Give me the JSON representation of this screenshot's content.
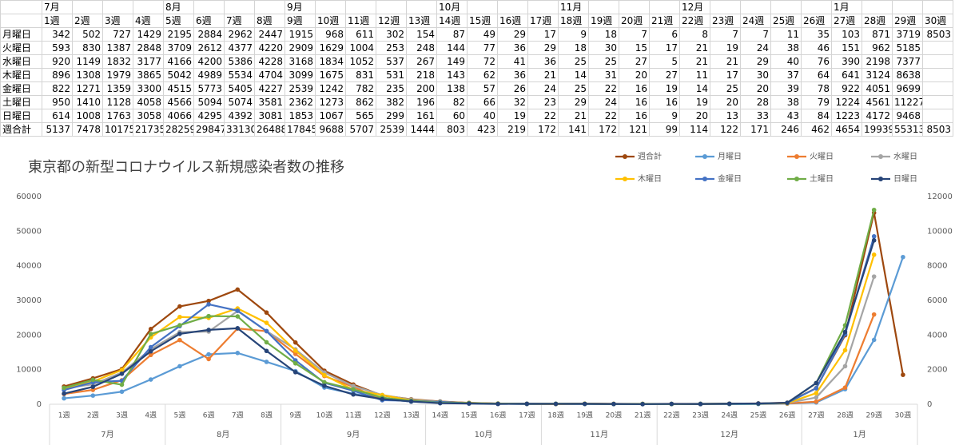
{
  "table": {
    "months": [
      "7月",
      null,
      null,
      null,
      "8月",
      null,
      null,
      null,
      "9月",
      null,
      null,
      null,
      null,
      "10月",
      null,
      null,
      null,
      "11月",
      null,
      null,
      null,
      "12月",
      null,
      null,
      null,
      null,
      "1月",
      null,
      null,
      null
    ],
    "weeks": [
      "1週",
      "2週",
      "3週",
      "4週",
      "5週",
      "6週",
      "7週",
      "8週",
      "9週",
      "10週",
      "11週",
      "12週",
      "13週",
      "14週",
      "15週",
      "16週",
      "17週",
      "18週",
      "19週",
      "20週",
      "21週",
      "22週",
      "23週",
      "24週",
      "25週",
      "26週",
      "27週",
      "28週",
      "29週",
      "30週"
    ],
    "rows": [
      {
        "label": "月曜日",
        "values": [
          342,
          502,
          727,
          1429,
          2195,
          2884,
          2962,
          2447,
          1915,
          968,
          611,
          302,
          154,
          87,
          49,
          29,
          17,
          9,
          18,
          7,
          6,
          8,
          7,
          7,
          11,
          35,
          103,
          871,
          3719,
          8503
        ]
      },
      {
        "label": "火曜日",
        "values": [
          593,
          830,
          1387,
          2848,
          3709,
          2612,
          4377,
          4220,
          2909,
          1629,
          1004,
          253,
          248,
          144,
          77,
          36,
          29,
          18,
          30,
          15,
          17,
          21,
          19,
          24,
          38,
          46,
          151,
          962,
          5185
        ]
      },
      {
        "label": "水曜日",
        "values": [
          920,
          1149,
          1832,
          3177,
          4166,
          4200,
          5386,
          4228,
          3168,
          1834,
          1052,
          537,
          267,
          149,
          72,
          41,
          36,
          25,
          25,
          27,
          5,
          21,
          21,
          29,
          40,
          76,
          390,
          2198,
          7377
        ]
      },
      {
        "label": "木曜日",
        "values": [
          896,
          1308,
          1979,
          3865,
          5042,
          4989,
          5534,
          4704,
          3099,
          1675,
          831,
          531,
          218,
          143,
          62,
          36,
          21,
          14,
          31,
          20,
          27,
          11,
          17,
          30,
          37,
          64,
          641,
          3124,
          8638
        ]
      },
      {
        "label": "金曜日",
        "values": [
          822,
          1271,
          1359,
          3300,
          4515,
          5773,
          5405,
          4227,
          2539,
          1242,
          782,
          235,
          200,
          138,
          57,
          26,
          24,
          25,
          22,
          16,
          19,
          14,
          25,
          20,
          39,
          78,
          922,
          4051,
          9699
        ]
      },
      {
        "label": "土曜日",
        "values": [
          950,
          1410,
          1128,
          4058,
          4566,
          5094,
          5074,
          3581,
          2362,
          1273,
          862,
          382,
          196,
          82,
          66,
          32,
          23,
          29,
          24,
          16,
          16,
          19,
          20,
          28,
          38,
          79,
          1224,
          4561,
          11227
        ]
      },
      {
        "label": "日曜日",
        "values": [
          614,
          1008,
          1763,
          3058,
          4066,
          4295,
          4392,
          3081,
          1853,
          1067,
          565,
          299,
          161,
          60,
          40,
          19,
          22,
          21,
          22,
          16,
          9,
          20,
          13,
          33,
          43,
          84,
          1223,
          4172,
          9468
        ]
      },
      {
        "label": "週合計",
        "values": [
          5137,
          7478,
          10175,
          21735,
          28259,
          29847,
          33130,
          26488,
          17845,
          9688,
          5707,
          2539,
          1444,
          803,
          423,
          219,
          172,
          141,
          172,
          121,
          99,
          114,
          122,
          171,
          246,
          462,
          4654,
          19939,
          55313,
          8503
        ]
      }
    ]
  },
  "chart_data": {
    "type": "line",
    "title": "東京都の新型コロナウイルス新規感染者数の推移",
    "categories": [
      "1週",
      "2週",
      "3週",
      "4週",
      "5週",
      "6週",
      "7週",
      "8週",
      "9週",
      "10週",
      "11週",
      "12週",
      "13週",
      "14週",
      "15週",
      "16週",
      "17週",
      "18週",
      "19週",
      "20週",
      "21週",
      "22週",
      "23週",
      "24週",
      "25週",
      "26週",
      "27週",
      "28週",
      "29週",
      "30週"
    ],
    "x_groups": [
      "7月",
      null,
      null,
      null,
      "8月",
      null,
      null,
      null,
      "9月",
      null,
      null,
      null,
      null,
      "10月",
      null,
      null,
      null,
      "11月",
      null,
      null,
      null,
      "12月",
      null,
      null,
      null,
      null,
      "1月",
      null,
      null,
      null
    ],
    "ylim": [
      0,
      60000
    ],
    "yticks": [
      0,
      10000,
      20000,
      30000,
      40000,
      50000,
      60000
    ],
    "y2lim": [
      0,
      12000
    ],
    "y2ticks": [
      0,
      2000,
      4000,
      6000,
      8000,
      10000,
      12000
    ],
    "grid": false,
    "legend": "top-right",
    "series": [
      {
        "name": "週合計",
        "color": "#9e480e",
        "values": [
          5137,
          7478,
          10175,
          21735,
          28259,
          29847,
          33130,
          26488,
          17845,
          9688,
          5707,
          2539,
          1444,
          803,
          423,
          219,
          172,
          141,
          172,
          121,
          99,
          114,
          122,
          171,
          246,
          462,
          4654,
          19939,
          55313,
          8503
        ]
      },
      {
        "name": "月曜日",
        "color": "#5b9bd5",
        "axis": "y2",
        "values": [
          342,
          502,
          727,
          1429,
          2195,
          2884,
          2962,
          2447,
          1915,
          968,
          611,
          302,
          154,
          87,
          49,
          29,
          17,
          9,
          18,
          7,
          6,
          8,
          7,
          7,
          11,
          35,
          103,
          871,
          3719,
          8503
        ]
      },
      {
        "name": "火曜日",
        "color": "#ed7d31",
        "axis": "y2",
        "values": [
          593,
          830,
          1387,
          2848,
          3709,
          2612,
          4377,
          4220,
          2909,
          1629,
          1004,
          253,
          248,
          144,
          77,
          36,
          29,
          18,
          30,
          15,
          17,
          21,
          19,
          24,
          38,
          46,
          151,
          962,
          5185,
          null
        ]
      },
      {
        "name": "水曜日",
        "color": "#a5a5a5",
        "axis": "y2",
        "values": [
          920,
          1149,
          1832,
          3177,
          4166,
          4200,
          5386,
          4228,
          3168,
          1834,
          1052,
          537,
          267,
          149,
          72,
          41,
          36,
          25,
          25,
          27,
          5,
          21,
          21,
          29,
          40,
          76,
          390,
          2198,
          7377,
          null
        ]
      },
      {
        "name": "木曜日",
        "color": "#ffc000",
        "axis": "y2",
        "values": [
          896,
          1308,
          1979,
          3865,
          5042,
          4989,
          5534,
          4704,
          3099,
          1675,
          831,
          531,
          218,
          143,
          62,
          36,
          21,
          14,
          31,
          20,
          27,
          11,
          17,
          30,
          37,
          64,
          641,
          3124,
          8638,
          null
        ]
      },
      {
        "name": "金曜日",
        "color": "#4472c4",
        "axis": "y2",
        "values": [
          822,
          1271,
          1359,
          3300,
          4515,
          5773,
          5405,
          4227,
          2539,
          1242,
          782,
          235,
          200,
          138,
          57,
          26,
          24,
          25,
          22,
          16,
          19,
          14,
          25,
          20,
          39,
          78,
          922,
          4051,
          9699,
          null
        ]
      },
      {
        "name": "土曜日",
        "color": "#70ad47",
        "axis": "y2",
        "values": [
          950,
          1410,
          1128,
          4058,
          4566,
          5094,
          5074,
          3581,
          2362,
          1273,
          862,
          382,
          196,
          82,
          66,
          32,
          23,
          29,
          24,
          16,
          16,
          19,
          20,
          28,
          38,
          79,
          1224,
          4561,
          11227,
          null
        ]
      },
      {
        "name": "日曜日",
        "color": "#264478",
        "axis": "y2",
        "values": [
          614,
          1008,
          1763,
          3058,
          4066,
          4295,
          4392,
          3081,
          1853,
          1067,
          565,
          299,
          161,
          60,
          40,
          19,
          22,
          21,
          22,
          16,
          9,
          20,
          13,
          33,
          43,
          84,
          1223,
          4172,
          9468,
          null
        ]
      }
    ]
  }
}
